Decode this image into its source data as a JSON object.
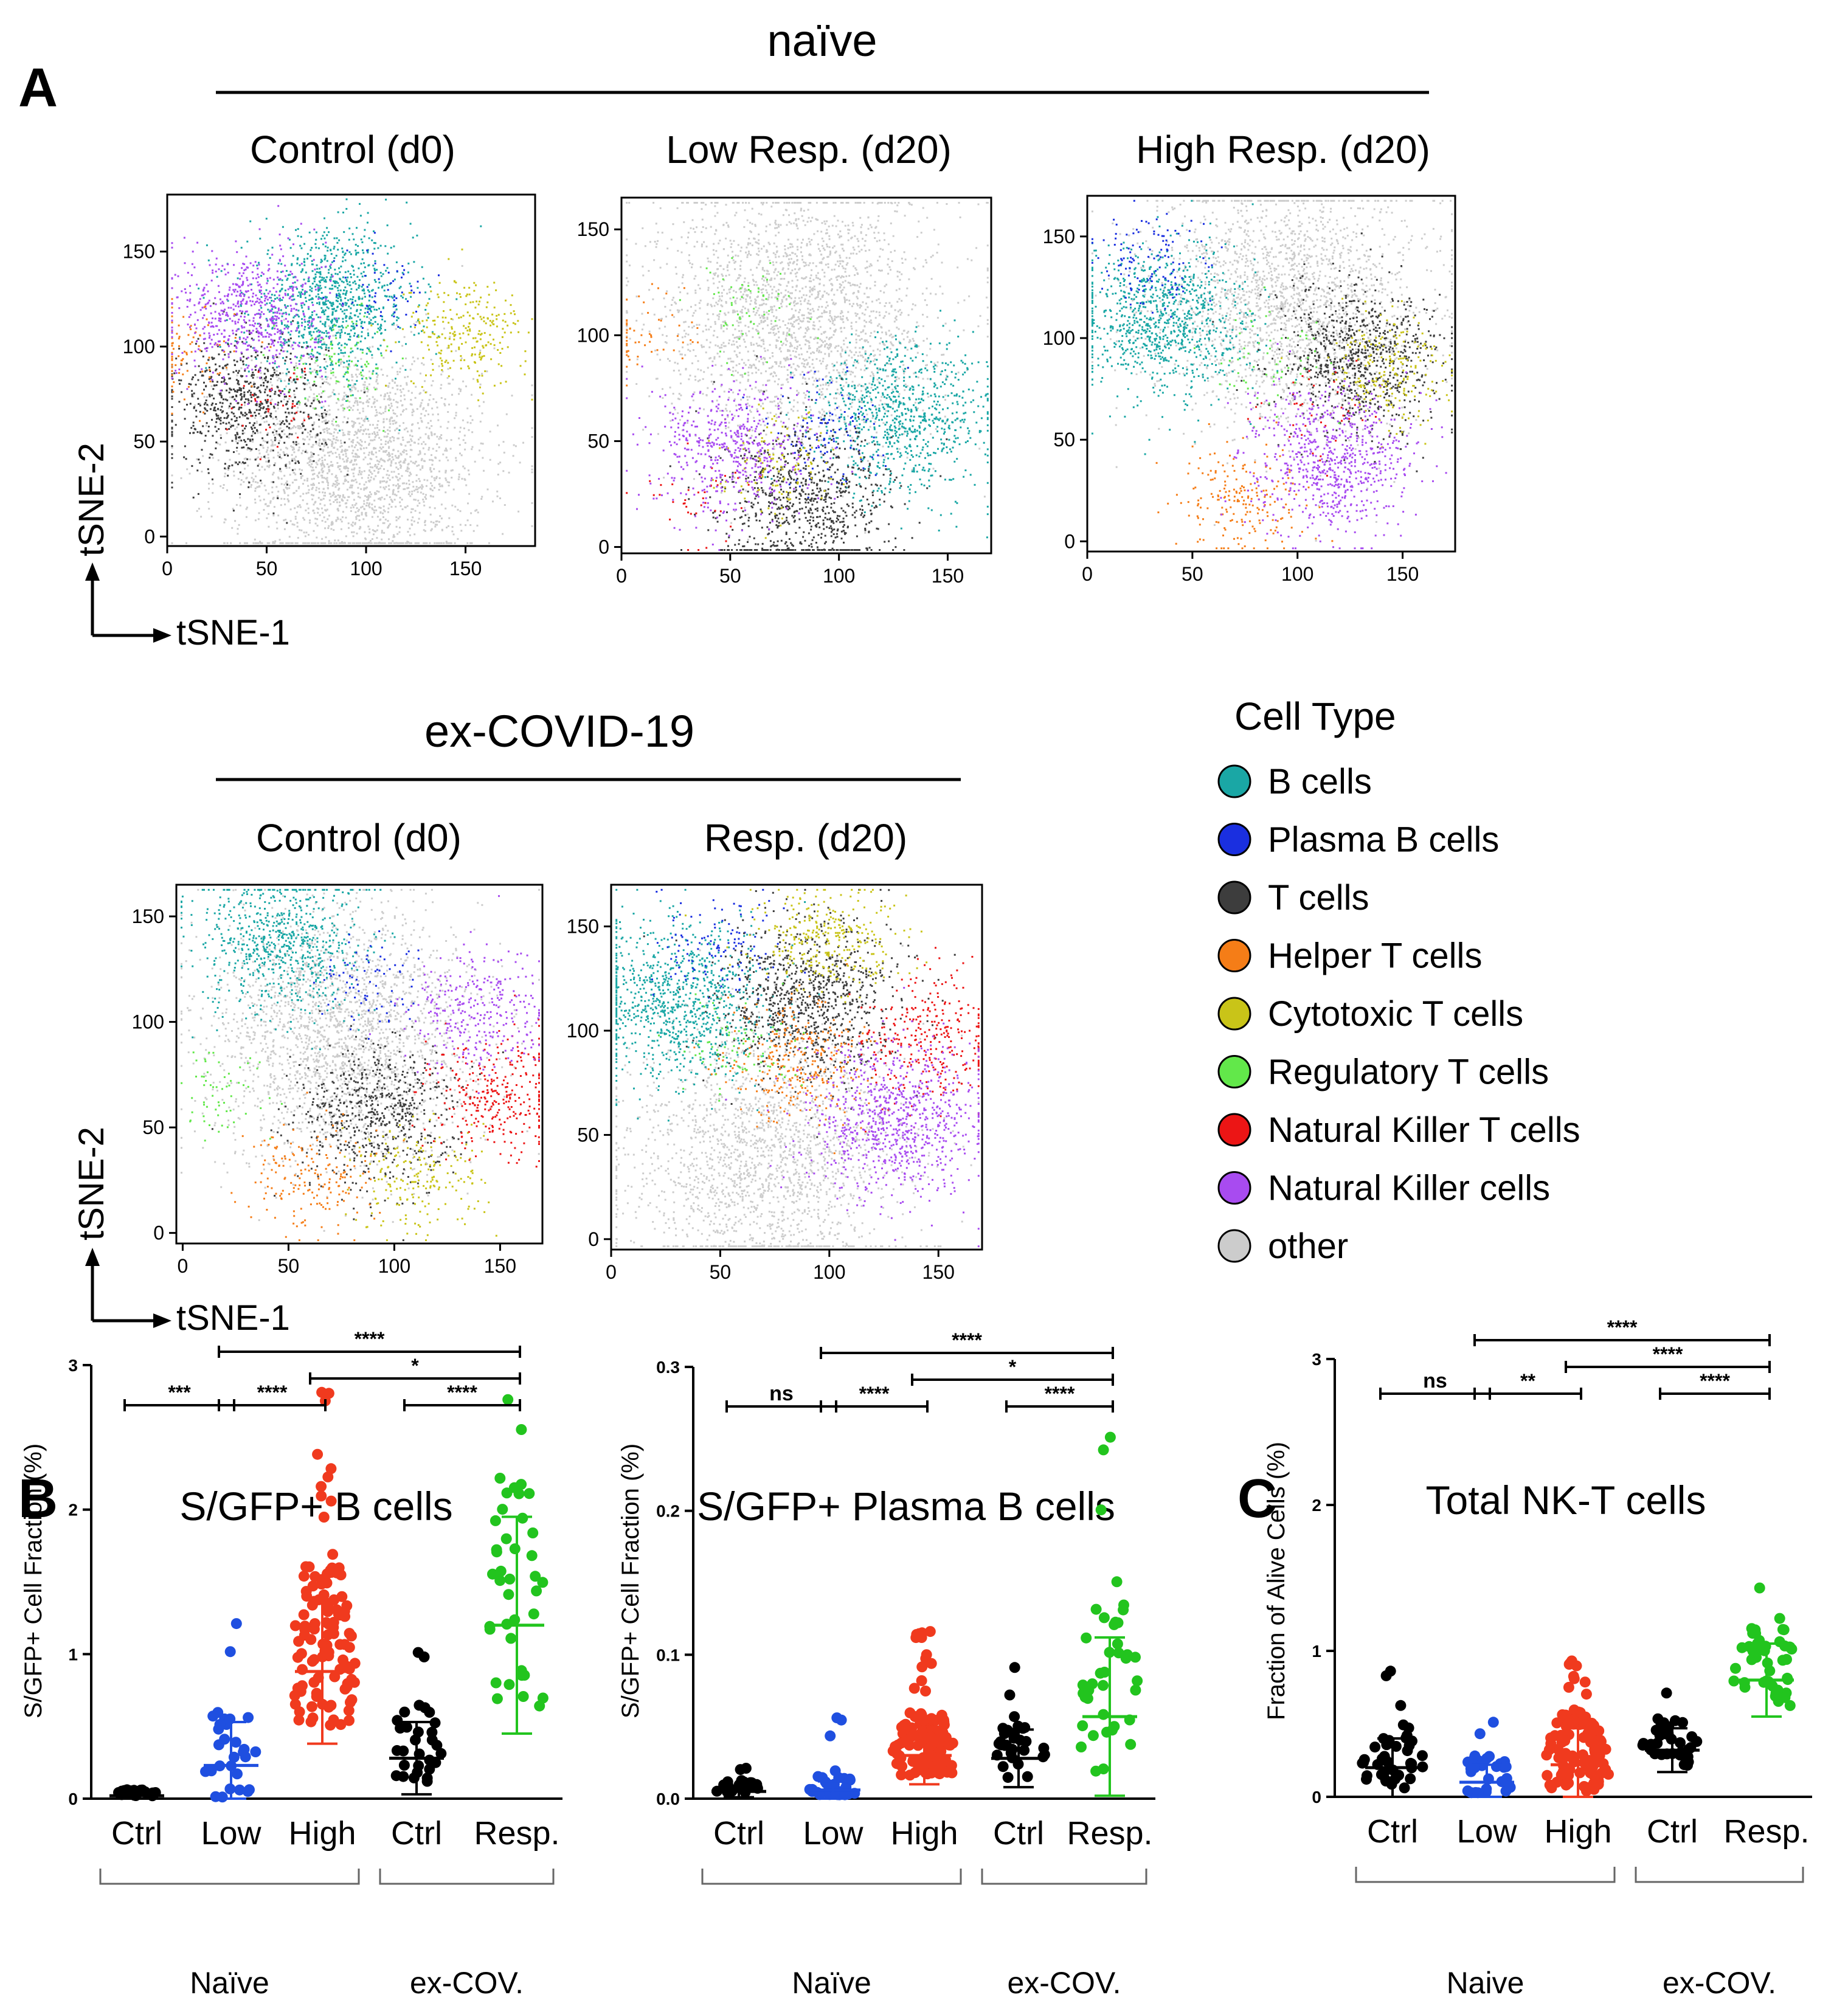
{
  "panel_labels": {
    "A": "A",
    "B": "B",
    "C": "C"
  },
  "groups": {
    "naive": "naïve",
    "excovid": "ex-COVID-19"
  },
  "tsne_axes": {
    "y": "tSNE-2",
    "x": "tSNE-1"
  },
  "legend": {
    "title": "Cell Type",
    "items": [
      {
        "label": "B cells",
        "color": "#1aa7a5"
      },
      {
        "label": "Plasma B cells",
        "color": "#1a2fe0"
      },
      {
        "label": "T cells",
        "color": "#3d3d3d"
      },
      {
        "label": "Helper T cells",
        "color": "#f57d17"
      },
      {
        "label": "Cytotoxic T cells",
        "color": "#c9c418"
      },
      {
        "label": "Regulatory T cells",
        "color": "#62e84a"
      },
      {
        "label": "Natural Killer T cells",
        "color": "#ec1515"
      },
      {
        "label": "Natural Killer  cells",
        "color": "#a84bf0"
      },
      {
        "label": "other",
        "color": "#cccccc"
      }
    ]
  },
  "chart_data": [
    {
      "type": "scatter",
      "title": "Control (d0)",
      "group": "naïve",
      "xlabel": "tSNE-1",
      "ylabel": "tSNE-2",
      "xticks": [
        0,
        50,
        100,
        150
      ],
      "yticks": [
        0,
        50,
        100,
        150
      ],
      "xlim": [
        0,
        185
      ],
      "ylim": [
        -5,
        180
      ],
      "clusters": [
        {
          "type": "B cells",
          "center": [
            82,
            122
          ],
          "n": 950
        },
        {
          "type": "Plasma B cells",
          "center": [
            107,
            128
          ],
          "n": 60
        },
        {
          "type": "T cells",
          "center": [
            40,
            70
          ],
          "n": 700
        },
        {
          "type": "Helper T cells",
          "center": [
            8,
            96
          ],
          "n": 90
        },
        {
          "type": "Cytotoxic T cells",
          "center": [
            150,
            108
          ],
          "n": 250
        },
        {
          "type": "Regulatory T cells",
          "center": [
            87,
            92
          ],
          "n": 90
        },
        {
          "type": "Natural Killer T cells",
          "center": [
            57,
            72
          ],
          "n": 40
        },
        {
          "type": "Natural Killer  cells",
          "center": [
            42,
            118
          ],
          "n": 600
        },
        {
          "type": "other",
          "center": [
            95,
            40
          ],
          "n": 2200
        }
      ]
    },
    {
      "type": "scatter",
      "title": "Low Resp. (d20)",
      "group": "naïve",
      "xlabel": "tSNE-1",
      "ylabel": "tSNE-2",
      "xticks": [
        0,
        50,
        100,
        150
      ],
      "yticks": [
        0,
        50,
        100,
        150
      ],
      "xlim": [
        0,
        170
      ],
      "ylim": [
        -3,
        165
      ],
      "clusters": [
        {
          "type": "B cells",
          "center": [
            130,
            62
          ],
          "n": 800
        },
        {
          "type": "Plasma B cells",
          "center": [
            93,
            54
          ],
          "n": 120
        },
        {
          "type": "T cells",
          "center": [
            85,
            20
          ],
          "n": 800
        },
        {
          "type": "Helper T cells",
          "center": [
            10,
            100
          ],
          "n": 60
        },
        {
          "type": "Cytotoxic T cells",
          "center": [
            70,
            40
          ],
          "n": 120
        },
        {
          "type": "Regulatory T cells",
          "center": [
            58,
            110
          ],
          "n": 60
        },
        {
          "type": "Natural Killer T cells",
          "center": [
            35,
            25
          ],
          "n": 40
        },
        {
          "type": "Natural Killer  cells",
          "center": [
            52,
            47
          ],
          "n": 500
        },
        {
          "type": "other",
          "center": [
            80,
            110
          ],
          "n": 2200
        }
      ]
    },
    {
      "type": "scatter",
      "title": "High Resp. (d20)",
      "group": "naïve",
      "xlabel": "tSNE-1",
      "ylabel": "tSNE-2",
      "xticks": [
        0,
        50,
        100,
        150
      ],
      "yticks": [
        0,
        50,
        100,
        150
      ],
      "xlim": [
        0,
        175
      ],
      "ylim": [
        -5,
        170
      ],
      "clusters": [
        {
          "type": "B cells",
          "center": [
            35,
            108
          ],
          "n": 900
        },
        {
          "type": "Plasma B cells",
          "center": [
            32,
            136
          ],
          "n": 120
        },
        {
          "type": "T cells",
          "center": [
            130,
            90
          ],
          "n": 800
        },
        {
          "type": "Helper T cells",
          "center": [
            75,
            20
          ],
          "n": 200
        },
        {
          "type": "Cytotoxic T cells",
          "center": [
            145,
            85
          ],
          "n": 200
        },
        {
          "type": "Regulatory T cells",
          "center": [
            88,
            90
          ],
          "n": 60
        },
        {
          "type": "Natural Killer T cells",
          "center": [
            105,
            65
          ],
          "n": 40
        },
        {
          "type": "Natural Killer  cells",
          "center": [
            115,
            40
          ],
          "n": 700
        },
        {
          "type": "other",
          "center": [
            95,
            120
          ],
          "n": 2000
        }
      ]
    },
    {
      "type": "scatter",
      "title": "Control (d0)",
      "group": "ex-COVID-19",
      "xlabel": "tSNE-1",
      "ylabel": "tSNE-2",
      "xticks": [
        0,
        50,
        100,
        150
      ],
      "yticks": [
        0,
        50,
        100,
        150
      ],
      "xlim": [
        -3,
        170
      ],
      "ylim": [
        -5,
        165
      ],
      "clusters": [
        {
          "type": "B cells",
          "center": [
            45,
            138
          ],
          "n": 700
        },
        {
          "type": "Plasma B cells",
          "center": [
            90,
            118
          ],
          "n": 80
        },
        {
          "type": "T cells",
          "center": [
            90,
            55
          ],
          "n": 600
        },
        {
          "type": "Helper T cells",
          "center": [
            60,
            25
          ],
          "n": 180
        },
        {
          "type": "Cytotoxic T cells",
          "center": [
            110,
            25
          ],
          "n": 200
        },
        {
          "type": "Regulatory T cells",
          "center": [
            15,
            65
          ],
          "n": 60
        },
        {
          "type": "Natural Killer T cells",
          "center": [
            148,
            65
          ],
          "n": 300
        },
        {
          "type": "Natural Killer  cells",
          "center": [
            140,
            105
          ],
          "n": 300
        },
        {
          "type": "other",
          "center": [
            75,
            95
          ],
          "n": 2200
        }
      ]
    },
    {
      "type": "scatter",
      "title": "Resp. (d20)",
      "group": "ex-COVID-19",
      "xlabel": "tSNE-1",
      "ylabel": "tSNE-2",
      "xticks": [
        0,
        50,
        100,
        150
      ],
      "yticks": [
        0,
        50,
        100,
        150
      ],
      "xlim": [
        0,
        170
      ],
      "ylim": [
        -5,
        170
      ],
      "clusters": [
        {
          "type": "B cells",
          "center": [
            30,
            115
          ],
          "n": 900
        },
        {
          "type": "Plasma B cells",
          "center": [
            48,
            140
          ],
          "n": 120
        },
        {
          "type": "T cells",
          "center": [
            90,
            115
          ],
          "n": 900
        },
        {
          "type": "Helper T cells",
          "center": [
            85,
            85
          ],
          "n": 300
        },
        {
          "type": "Cytotoxic T cells",
          "center": [
            100,
            145
          ],
          "n": 300
        },
        {
          "type": "Regulatory T cells",
          "center": [
            60,
            95
          ],
          "n": 80
        },
        {
          "type": "Natural Killer T cells",
          "center": [
            145,
            95
          ],
          "n": 300
        },
        {
          "type": "Natural Killer  cells",
          "center": [
            130,
            55
          ],
          "n": 800
        },
        {
          "type": "other",
          "center": [
            70,
            40
          ],
          "n": 1800
        }
      ]
    },
    {
      "type": "scatter",
      "subtype": "dot-plot",
      "title": "S/GFP+ B cells",
      "ylabel": "S/GFP+  Cell Fraction (%)",
      "yticks": [
        0,
        1,
        2,
        3
      ],
      "yticklabels": [
        "0",
        "1",
        "2",
        "3"
      ],
      "ylim": [
        0,
        3
      ],
      "categories": [
        "Ctrl",
        "Low",
        "High",
        "Ctrl",
        "Resp."
      ],
      "colors": [
        "#000000",
        "#1f4fe0",
        "#f03a1e",
        "#000000",
        "#22c41e"
      ],
      "n": [
        20,
        30,
        110,
        30,
        40
      ],
      "mean": [
        0.02,
        0.23,
        0.88,
        0.28,
        1.2
      ],
      "sd": [
        0.02,
        0.3,
        0.5,
        0.25,
        0.75
      ],
      "max": [
        0.05,
        1.2,
        2.8,
        1.0,
        2.75
      ],
      "brackets": [
        {
          "from": 0,
          "to": 1,
          "label": "***",
          "level": 0
        },
        {
          "from": 1,
          "to": 2,
          "label": "****",
          "level": 0
        },
        {
          "from": 2,
          "to": 4,
          "label": "*",
          "level": 1
        },
        {
          "from": 1,
          "to": 4,
          "label": "****",
          "level": 2
        },
        {
          "from": 3,
          "to": 4,
          "label": "****",
          "level": 0
        }
      ],
      "group_labels": [
        {
          "label": "Naïve",
          "from": 0,
          "to": 2
        },
        {
          "label": "ex-COV.",
          "from": 3,
          "to": 4
        }
      ]
    },
    {
      "type": "scatter",
      "subtype": "dot-plot",
      "title": "S/GFP+ Plasma B cells",
      "ylabel": "S/GFP+  Cell Fraction (%)",
      "yticks": [
        0,
        0.1,
        0.2,
        0.3
      ],
      "yticklabels": [
        "0.0",
        "0.1",
        "0.2",
        "0.3"
      ],
      "ylim": [
        0,
        0.3
      ],
      "categories": [
        "Ctrl",
        "Low",
        "High",
        "Ctrl",
        "Resp."
      ],
      "colors": [
        "#000000",
        "#1f4fe0",
        "#f03a1e",
        "#000000",
        "#22c41e"
      ],
      "n": [
        25,
        30,
        120,
        30,
        40
      ],
      "mean": [
        0.005,
        0.006,
        0.03,
        0.028,
        0.057
      ],
      "sd": [
        0.004,
        0.006,
        0.02,
        0.02,
        0.055
      ],
      "max": [
        0.02,
        0.055,
        0.115,
        0.09,
        0.25
      ],
      "brackets": [
        {
          "from": 0,
          "to": 1,
          "label": "ns",
          "level": 0
        },
        {
          "from": 1,
          "to": 2,
          "label": "****",
          "level": 0
        },
        {
          "from": 2,
          "to": 4,
          "label": "*",
          "level": 1
        },
        {
          "from": 1,
          "to": 4,
          "label": "****",
          "level": 2
        },
        {
          "from": 3,
          "to": 4,
          "label": "****",
          "level": 0
        }
      ],
      "group_labels": [
        {
          "label": "Naïve",
          "from": 0,
          "to": 2
        },
        {
          "label": "ex-COV.",
          "from": 3,
          "to": 4
        }
      ]
    },
    {
      "type": "scatter",
      "subtype": "dot-plot",
      "title": "Total NK-T cells",
      "ylabel": "Fraction of Alive Cells (%)",
      "yticks": [
        0,
        1,
        2,
        3
      ],
      "yticklabels": [
        "0",
        "1",
        "2",
        "3"
      ],
      "ylim": [
        0,
        3
      ],
      "categories": [
        "Ctrl",
        "Low",
        "High",
        "Ctrl",
        "Resp."
      ],
      "colors": [
        "#000000",
        "#1f4fe0",
        "#f03a1e",
        "#000000",
        "#22c41e"
      ],
      "n": [
        40,
        30,
        110,
        35,
        45
      ],
      "mean": [
        0.2,
        0.1,
        0.22,
        0.32,
        0.8
      ],
      "sd": [
        0.2,
        0.12,
        0.25,
        0.15,
        0.25
      ],
      "max": [
        0.85,
        0.5,
        0.92,
        0.7,
        1.42
      ],
      "brackets": [
        {
          "from": 0,
          "to": 1,
          "label": "ns",
          "level": 0
        },
        {
          "from": 1,
          "to": 2,
          "label": "**",
          "level": 0
        },
        {
          "from": 2,
          "to": 4,
          "label": "****",
          "level": 1
        },
        {
          "from": 1,
          "to": 4,
          "label": "****",
          "level": 2
        },
        {
          "from": 3,
          "to": 4,
          "label": "****",
          "level": 0
        }
      ],
      "group_labels": [
        {
          "label": "Naive",
          "from": 0,
          "to": 2
        },
        {
          "label": "ex-COV.",
          "from": 3,
          "to": 4
        }
      ]
    }
  ]
}
